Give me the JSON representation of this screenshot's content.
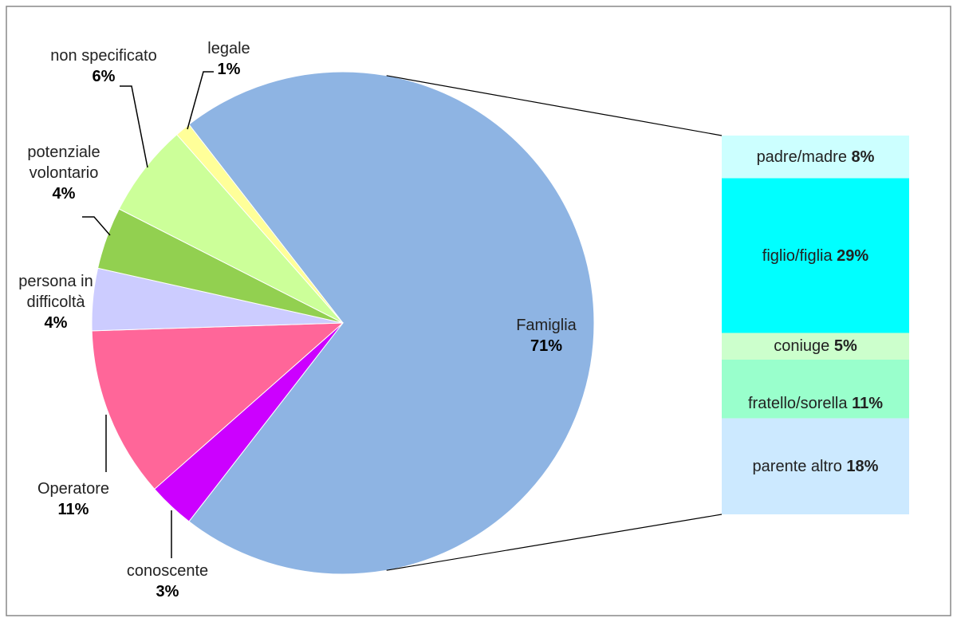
{
  "chart_data": {
    "type": "pie",
    "categories": [
      "Famiglia",
      "conoscente",
      "Operatore",
      "persona in difficoltà",
      "potenziale volontario",
      "non specificato",
      "legale"
    ],
    "values": [
      71,
      3,
      11,
      4,
      4,
      6,
      1
    ],
    "value_labels": [
      "71%",
      "3%",
      "11%",
      "4%",
      "4%",
      "6%",
      "1%"
    ],
    "colors": [
      "#8eb4e3",
      "#cc00ff",
      "#ff6699",
      "#ccccff",
      "#92d050",
      "#ccff99",
      "#ffff99"
    ],
    "breakdown": {
      "categories": [
        "padre/madre",
        "figlio/figlia",
        "coniuge",
        "fratello/sorella",
        "parente altro"
      ],
      "values": [
        8,
        29,
        5,
        11,
        18
      ],
      "value_labels": [
        "8%",
        "29%",
        "5%",
        "11%",
        "18%"
      ],
      "colors": [
        "#ccffff",
        "#00ffff",
        "#ccffcc",
        "#99ffcc",
        "#cce9ff"
      ]
    }
  }
}
